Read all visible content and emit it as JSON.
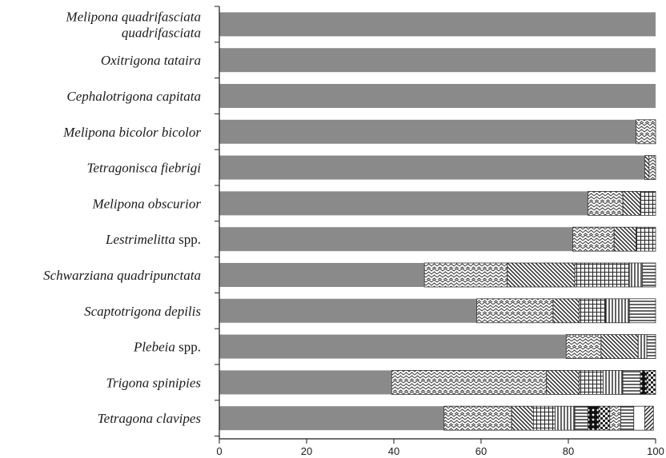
{
  "chart_data": {
    "type": "bar",
    "orientation": "horizontal",
    "stacked": true,
    "xlim": [
      0,
      100
    ],
    "xticks": [
      "0",
      "20",
      "40",
      "60",
      "80",
      "100"
    ],
    "grid": false,
    "categories": [
      {
        "lines": [
          [
            {
              "t": "Melipona quadrifasciata",
              "it": true
            }
          ],
          [
            {
              "t": "quadrifasciata",
              "it": true
            }
          ]
        ]
      },
      {
        "lines": [
          [
            {
              "t": "Oxitrigona tataira",
              "it": true
            }
          ]
        ]
      },
      {
        "lines": [
          [
            {
              "t": "Cephalotrigona capitata",
              "it": true
            }
          ]
        ]
      },
      {
        "lines": [
          [
            {
              "t": "Melipona bicolor bicolor",
              "it": true
            }
          ]
        ]
      },
      {
        "lines": [
          [
            {
              "t": "Tetragonisca fiebrigi",
              "it": true
            }
          ]
        ]
      },
      {
        "lines": [
          [
            {
              "t": "Melipona obscurior",
              "it": true
            }
          ]
        ]
      },
      {
        "lines": [
          [
            {
              "t": "Lestrimelitta",
              "it": true
            },
            {
              "t": " spp.",
              "it": false
            }
          ]
        ]
      },
      {
        "lines": [
          [
            {
              "t": "Schwarziana quadripunctata",
              "it": true
            }
          ]
        ]
      },
      {
        "lines": [
          [
            {
              "t": "Scaptotrigona depilis",
              "it": true
            }
          ]
        ]
      },
      {
        "lines": [
          [
            {
              "t": "Plebeia",
              "it": true
            },
            {
              "t": " spp.",
              "it": false
            }
          ]
        ]
      },
      {
        "lines": [
          [
            {
              "t": "Trigona spinipies",
              "it": true
            }
          ]
        ]
      },
      {
        "lines": [
          [
            {
              "t": "Tetragona clavipes",
              "it": true
            }
          ]
        ]
      }
    ],
    "segment_styles": [
      "solid-gray",
      "zigzag",
      "diag-back",
      "grid",
      "vlines",
      "hlines",
      "dotted",
      "white",
      "diag-fwd",
      "checker"
    ],
    "bars": [
      [
        {
          "v": 100,
          "s": "solid-gray"
        }
      ],
      [
        {
          "v": 100,
          "s": "solid-gray"
        }
      ],
      [
        {
          "v": 100,
          "s": "solid-gray"
        }
      ],
      [
        {
          "v": 95.5,
          "s": "solid-gray"
        },
        {
          "v": 4.5,
          "s": "zigzag"
        }
      ],
      [
        {
          "v": 97.5,
          "s": "solid-gray"
        },
        {
          "v": 1,
          "s": "diag-back"
        },
        {
          "v": 1.5,
          "s": "zigzag"
        }
      ],
      [
        {
          "v": 84.5,
          "s": "solid-gray"
        },
        {
          "v": 8,
          "s": "zigzag"
        },
        {
          "v": 4,
          "s": "diag-back"
        },
        {
          "v": 3.5,
          "s": "grid"
        }
      ],
      [
        {
          "v": 81,
          "s": "solid-gray"
        },
        {
          "v": 9.5,
          "s": "zigzag"
        },
        {
          "v": 5,
          "s": "diag-back"
        },
        {
          "v": 4.5,
          "s": "grid"
        }
      ],
      [
        {
          "v": 47,
          "s": "solid-gray"
        },
        {
          "v": 19,
          "s": "zigzag"
        },
        {
          "v": 15.5,
          "s": "diag-back"
        },
        {
          "v": 12.5,
          "s": "grid"
        },
        {
          "v": 3,
          "s": "vlines"
        },
        {
          "v": 3,
          "s": "hlines"
        }
      ],
      [
        {
          "v": 59,
          "s": "solid-gray"
        },
        {
          "v": 17.5,
          "s": "zigzag"
        },
        {
          "v": 6,
          "s": "diag-back"
        },
        {
          "v": 6,
          "s": "grid"
        },
        {
          "v": 5.5,
          "s": "vlines"
        },
        {
          "v": 6,
          "s": "hlines"
        }
      ],
      [
        {
          "v": 79.5,
          "s": "solid-gray"
        },
        {
          "v": 8,
          "s": "zigzag"
        },
        {
          "v": 8.5,
          "s": "diag-back"
        },
        {
          "v": 2,
          "s": "vlines"
        },
        {
          "v": 2,
          "s": "hlines"
        }
      ],
      [
        {
          "v": 39.5,
          "s": "solid-gray"
        },
        {
          "v": 35.5,
          "s": "zigzag"
        },
        {
          "v": 7.5,
          "s": "diag-back"
        },
        {
          "v": 5.5,
          "s": "grid"
        },
        {
          "v": 4.5,
          "s": "vlines"
        },
        {
          "v": 4,
          "s": "hlines"
        },
        {
          "v": 1.5,
          "s": "dotted"
        },
        {
          "v": 2,
          "s": "checker"
        }
      ],
      [
        {
          "v": 51.5,
          "s": "solid-gray"
        },
        {
          "v": 15.5,
          "s": "zigzag"
        },
        {
          "v": 5,
          "s": "diag-back"
        },
        {
          "v": 5,
          "s": "grid"
        },
        {
          "v": 4.5,
          "s": "vlines"
        },
        {
          "v": 3,
          "s": "hlines"
        },
        {
          "v": 2.5,
          "s": "dotted"
        },
        {
          "v": 2.5,
          "s": "checker"
        },
        {
          "v": 2.5,
          "s": "zigzag"
        },
        {
          "v": 3,
          "s": "hlines"
        },
        {
          "v": 2.5,
          "s": "white"
        },
        {
          "v": 2,
          "s": "diag-fwd"
        }
      ]
    ],
    "colors": {
      "bar": "#8a8a8a",
      "axis": "#1a1a1a",
      "outline": "#333333"
    }
  }
}
